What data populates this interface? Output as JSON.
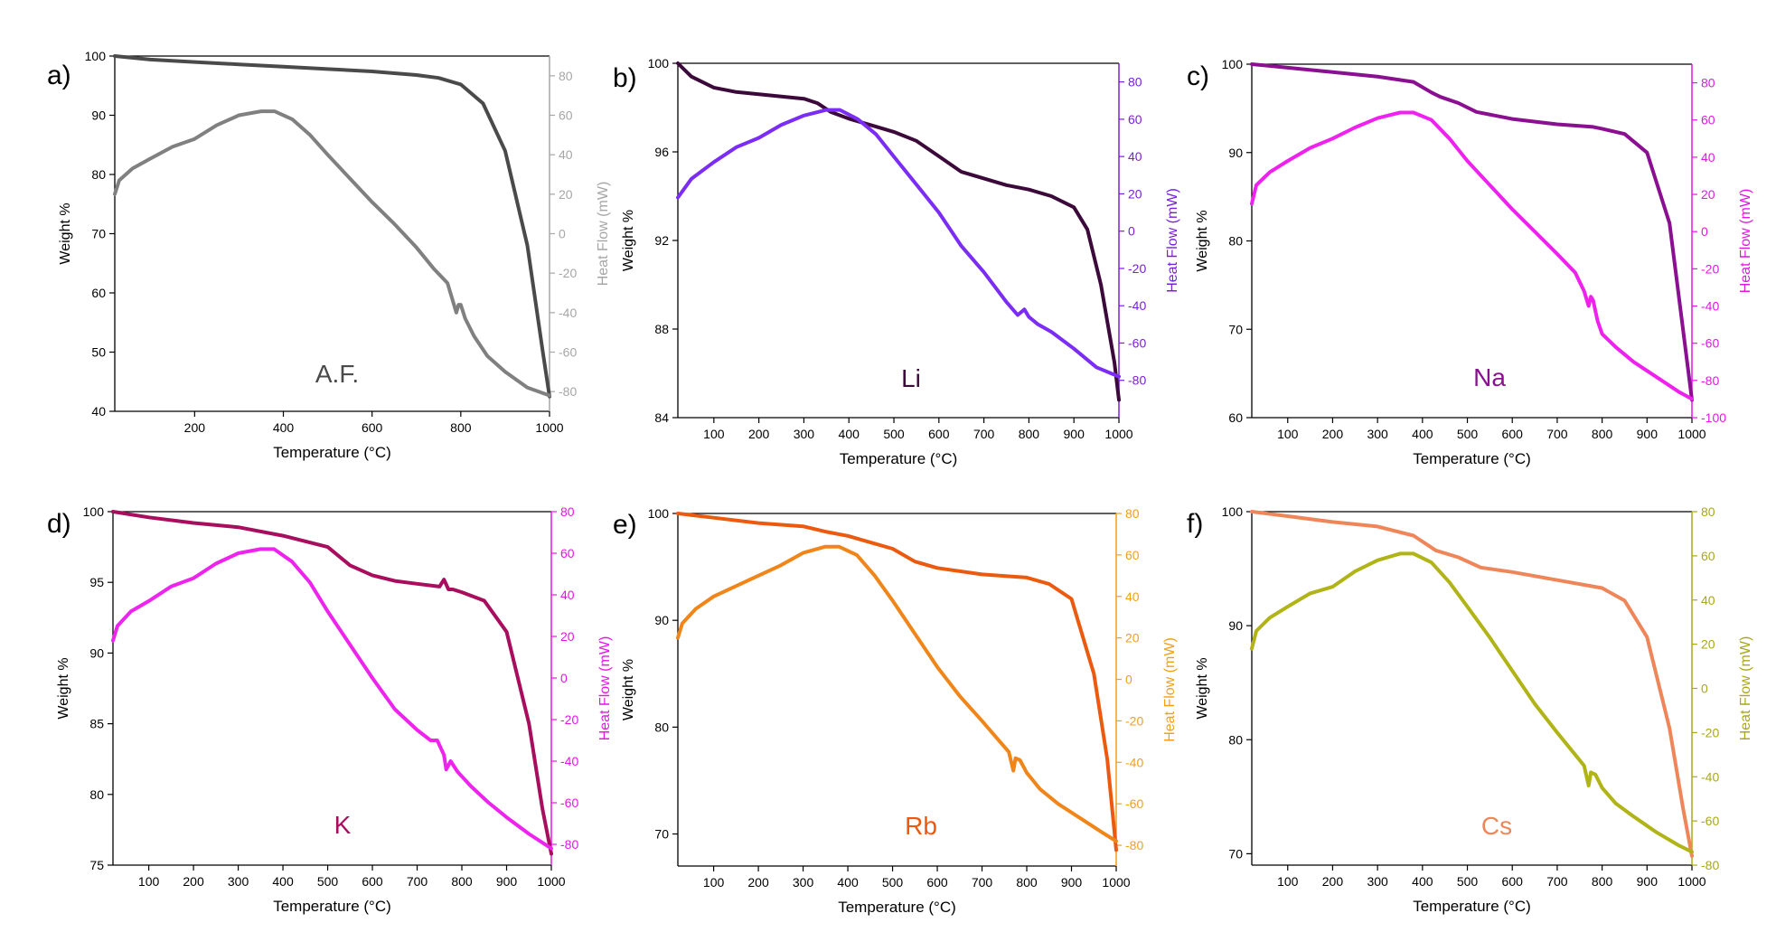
{
  "chart_data": [
    {
      "panel_label": "a)",
      "sample_label": "A.F.",
      "type": "line",
      "xlabel": "Temperature (°C)",
      "ylabel": "Weight %",
      "y2label": "Heat Flow (mW)",
      "xlim": [
        20,
        1000
      ],
      "xticks": [
        200,
        400,
        600,
        800,
        1000
      ],
      "ylim": [
        40,
        100
      ],
      "yticks": [
        40,
        50,
        60,
        70,
        80,
        90,
        100
      ],
      "y2lim": [
        -90,
        90
      ],
      "y2ticks": [
        -80,
        -60,
        -40,
        -20,
        0,
        20,
        40,
        60,
        80
      ],
      "colors": {
        "weight": "#4a4a4a",
        "heat": "#808080",
        "axis2": "#a6a6a6"
      },
      "series": [
        {
          "axis": "left",
          "x": [
            20,
            100,
            200,
            300,
            400,
            500,
            600,
            700,
            750,
            800,
            850,
            900,
            950,
            985,
            1000
          ],
          "y": [
            100,
            99.4,
            99,
            98.6,
            98.2,
            97.8,
            97.4,
            96.8,
            96.3,
            95.2,
            92,
            84,
            68,
            50,
            42.5
          ]
        },
        {
          "axis": "right",
          "x": [
            20,
            30,
            60,
            100,
            150,
            200,
            250,
            300,
            350,
            380,
            420,
            460,
            500,
            550,
            600,
            650,
            700,
            740,
            770,
            790,
            795,
            800,
            810,
            830,
            860,
            900,
            950,
            1000
          ],
          "y": [
            20,
            27,
            33,
            38,
            44,
            48,
            55,
            60,
            62,
            62,
            58,
            50,
            40,
            28,
            16,
            5,
            -7,
            -18,
            -25,
            -40,
            -36,
            -36,
            -43,
            -52,
            -62,
            -70,
            -78,
            -82
          ]
        }
      ]
    },
    {
      "panel_label": "b)",
      "sample_label": "Li",
      "type": "line",
      "xlabel": "Temperature (°C)",
      "ylabel": "Weight %",
      "y2label": "Heat Flow (mW)",
      "xlim": [
        20,
        1000
      ],
      "xticks": [
        100,
        200,
        300,
        400,
        500,
        600,
        700,
        800,
        900,
        1000
      ],
      "ylim": [
        84,
        100
      ],
      "yticks": [
        84,
        88,
        92,
        96,
        100
      ],
      "y2lim": [
        -100,
        90
      ],
      "y2ticks": [
        -80,
        -60,
        -40,
        -20,
        0,
        20,
        40,
        60,
        80
      ],
      "colors": {
        "weight": "#3b0a3a",
        "heat": "#7b2cf5",
        "axis2": "#7a20d8"
      },
      "series": [
        {
          "axis": "left",
          "x": [
            20,
            50,
            100,
            150,
            200,
            250,
            300,
            330,
            360,
            400,
            450,
            500,
            550,
            600,
            650,
            700,
            750,
            800,
            850,
            900,
            930,
            960,
            990,
            1000
          ],
          "y": [
            100,
            99.4,
            98.9,
            98.7,
            98.6,
            98.5,
            98.4,
            98.2,
            97.8,
            97.5,
            97.2,
            96.9,
            96.5,
            95.8,
            95.1,
            94.8,
            94.5,
            94.3,
            94,
            93.5,
            92.5,
            90,
            86.5,
            84.8
          ]
        },
        {
          "axis": "right",
          "x": [
            20,
            50,
            100,
            150,
            200,
            250,
            300,
            350,
            380,
            420,
            460,
            500,
            550,
            600,
            650,
            700,
            750,
            775,
            790,
            800,
            820,
            850,
            900,
            950,
            1000
          ],
          "y": [
            18,
            28,
            37,
            45,
            50,
            57,
            62,
            65,
            65,
            60,
            52,
            40,
            25,
            10,
            -8,
            -22,
            -38,
            -45,
            -42,
            -46,
            -50,
            -54,
            -63,
            -73,
            -78
          ]
        }
      ]
    },
    {
      "panel_label": "c)",
      "sample_label": "Na",
      "type": "line",
      "xlabel": "Temperature (°C)",
      "ylabel": "Weight %",
      "y2label": "Heat Flow (mW)",
      "xlim": [
        20,
        1000
      ],
      "xticks": [
        100,
        200,
        300,
        400,
        500,
        600,
        700,
        800,
        900,
        1000
      ],
      "ylim": [
        60,
        100
      ],
      "yticks": [
        60,
        70,
        80,
        90,
        100
      ],
      "y2lim": [
        -100,
        90
      ],
      "y2ticks": [
        -100,
        -80,
        -60,
        -40,
        -20,
        0,
        20,
        40,
        60,
        80
      ],
      "colors": {
        "weight": "#8a0f91",
        "heat": "#ef21ef",
        "axis2": "#e416e4"
      },
      "series": [
        {
          "axis": "left",
          "x": [
            20,
            100,
            200,
            300,
            380,
            420,
            440,
            480,
            520,
            600,
            700,
            780,
            800,
            850,
            900,
            950,
            980,
            1000
          ],
          "y": [
            100,
            99.6,
            99.1,
            98.6,
            98,
            96.8,
            96.3,
            95.6,
            94.6,
            93.8,
            93.2,
            92.9,
            92.7,
            92.1,
            90,
            82,
            70,
            62
          ]
        },
        {
          "axis": "right",
          "x": [
            20,
            30,
            60,
            100,
            150,
            200,
            250,
            300,
            350,
            380,
            420,
            460,
            500,
            550,
            600,
            650,
            700,
            740,
            760,
            770,
            775,
            780,
            790,
            800,
            830,
            870,
            920,
            970,
            1000
          ],
          "y": [
            15,
            25,
            32,
            38,
            45,
            50,
            56,
            61,
            64,
            64,
            60,
            50,
            38,
            25,
            12,
            0,
            -12,
            -22,
            -32,
            -40,
            -35,
            -37,
            -48,
            -55,
            -62,
            -70,
            -78,
            -86,
            -90
          ]
        }
      ]
    },
    {
      "panel_label": "d)",
      "sample_label": "K",
      "type": "line",
      "xlabel": "Temperature (°C)",
      "ylabel": "Weight %",
      "y2label": "Heat Flow (mW)",
      "xlim": [
        20,
        1000
      ],
      "xticks": [
        100,
        200,
        300,
        400,
        500,
        600,
        700,
        800,
        900,
        1000
      ],
      "ylim": [
        75,
        100
      ],
      "yticks": [
        75,
        80,
        85,
        90,
        95,
        100
      ],
      "y2lim": [
        -90,
        80
      ],
      "y2ticks": [
        -80,
        -60,
        -40,
        -20,
        0,
        20,
        40,
        60,
        80
      ],
      "colors": {
        "weight": "#a80d5e",
        "heat": "#ee24ee",
        "axis2": "#e416e4"
      },
      "series": [
        {
          "axis": "left",
          "x": [
            20,
            100,
            200,
            300,
            400,
            450,
            500,
            550,
            600,
            650,
            700,
            750,
            760,
            770,
            780,
            800,
            850,
            900,
            950,
            980,
            1000
          ],
          "y": [
            100,
            99.6,
            99.2,
            98.9,
            98.3,
            97.9,
            97.5,
            96.2,
            95.5,
            95.1,
            94.9,
            94.7,
            95.2,
            94.5,
            94.5,
            94.3,
            93.7,
            91.5,
            85,
            79,
            75.8
          ]
        },
        {
          "axis": "right",
          "x": [
            20,
            30,
            60,
            100,
            150,
            200,
            250,
            300,
            350,
            380,
            420,
            460,
            500,
            550,
            600,
            650,
            700,
            730,
            745,
            760,
            765,
            775,
            790,
            820,
            860,
            900,
            950,
            1000
          ],
          "y": [
            18,
            25,
            32,
            37,
            44,
            48,
            55,
            60,
            62,
            62,
            56,
            46,
            32,
            16,
            0,
            -15,
            -25,
            -30,
            -30,
            -37,
            -44,
            -40,
            -45,
            -52,
            -60,
            -67,
            -75,
            -82
          ]
        }
      ]
    },
    {
      "panel_label": "e)",
      "sample_label": "Rb",
      "type": "line",
      "xlabel": "Temperature (°C)",
      "ylabel": "Weight %",
      "y2label": "Heat Flow (mW)",
      "xlim": [
        20,
        1000
      ],
      "xticks": [
        100,
        200,
        300,
        400,
        500,
        600,
        700,
        800,
        900,
        1000
      ],
      "ylim": [
        67,
        100
      ],
      "yticks": [
        70,
        80,
        90,
        100
      ],
      "y2lim": [
        -90,
        80
      ],
      "y2ticks": [
        -80,
        -60,
        -40,
        -20,
        0,
        20,
        40,
        60,
        80
      ],
      "colors": {
        "weight": "#ec5a0f",
        "heat": "#f0861a",
        "axis2": "#f0a01a"
      },
      "series": [
        {
          "axis": "left",
          "x": [
            20,
            100,
            200,
            300,
            350,
            400,
            450,
            500,
            550,
            600,
            700,
            800,
            850,
            900,
            950,
            980,
            1000
          ],
          "y": [
            100,
            99.6,
            99.1,
            98.8,
            98.3,
            97.9,
            97.3,
            96.7,
            95.5,
            94.9,
            94.3,
            94,
            93.4,
            92,
            85,
            77,
            68.5
          ]
        },
        {
          "axis": "right",
          "x": [
            20,
            30,
            60,
            100,
            150,
            200,
            250,
            300,
            350,
            380,
            420,
            460,
            500,
            550,
            600,
            650,
            700,
            740,
            760,
            770,
            775,
            785,
            800,
            830,
            870,
            920,
            970,
            1000
          ],
          "y": [
            20,
            27,
            34,
            40,
            45,
            50,
            55,
            61,
            64,
            64,
            60,
            50,
            38,
            22,
            6,
            -8,
            -20,
            -30,
            -35,
            -44,
            -38,
            -39,
            -45,
            -53,
            -60,
            -67,
            -74,
            -78
          ]
        }
      ]
    },
    {
      "panel_label": "f)",
      "sample_label": "Cs",
      "type": "line",
      "xlabel": "Temperature (°C)",
      "ylabel": "Weight %",
      "y2label": "Heat Flow (mW)",
      "xlim": [
        20,
        1000
      ],
      "xticks": [
        100,
        200,
        300,
        400,
        500,
        600,
        700,
        800,
        900,
        1000
      ],
      "ylim": [
        69,
        100
      ],
      "yticks": [
        70,
        80,
        90,
        100
      ],
      "y2lim": [
        -80,
        80
      ],
      "y2ticks": [
        -80,
        -60,
        -40,
        -20,
        0,
        20,
        40,
        60,
        80
      ],
      "colors": {
        "weight": "#ef865a",
        "heat": "#b0b416",
        "axis2": "#a8a81a"
      },
      "series": [
        {
          "axis": "left",
          "x": [
            20,
            100,
            200,
            300,
            380,
            430,
            480,
            530,
            600,
            700,
            800,
            850,
            900,
            950,
            980,
            1000
          ],
          "y": [
            100,
            99.6,
            99.1,
            98.7,
            97.9,
            96.6,
            96,
            95.1,
            94.7,
            94,
            93.3,
            92.2,
            89,
            81,
            74,
            69.8
          ]
        },
        {
          "axis": "right",
          "x": [
            20,
            30,
            60,
            100,
            150,
            200,
            250,
            300,
            350,
            380,
            420,
            460,
            500,
            550,
            600,
            650,
            700,
            740,
            760,
            770,
            775,
            785,
            800,
            830,
            870,
            920,
            970,
            1000
          ],
          "y": [
            18,
            26,
            32,
            37,
            43,
            46,
            53,
            58,
            61,
            61,
            57,
            48,
            37,
            23,
            8,
            -7,
            -20,
            -30,
            -35,
            -44,
            -38,
            -39,
            -45,
            -52,
            -58,
            -65,
            -71,
            -74
          ]
        }
      ]
    }
  ]
}
